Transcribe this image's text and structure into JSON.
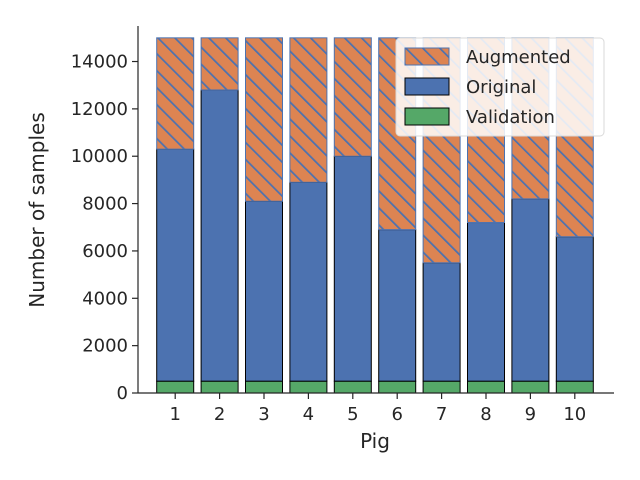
{
  "chart_data": {
    "type": "bar",
    "stacked": true,
    "xlabel": "Pig",
    "ylabel": "Number of samples",
    "categories": [
      "1",
      "2",
      "3",
      "4",
      "5",
      "6",
      "7",
      "8",
      "9",
      "10"
    ],
    "ylim": [
      0,
      15500
    ],
    "yticks": [
      0,
      2000,
      4000,
      6000,
      8000,
      10000,
      12000,
      14000
    ],
    "series": [
      {
        "name": "Validation",
        "color": "#55a868",
        "pattern": "solid",
        "values": [
          500,
          500,
          500,
          500,
          500,
          500,
          500,
          500,
          500,
          500
        ]
      },
      {
        "name": "Original",
        "color": "#4c72b0",
        "pattern": "solid",
        "values": [
          9800,
          12300,
          7600,
          8400,
          9500,
          6400,
          5000,
          6700,
          7700,
          6100
        ]
      },
      {
        "name": "Augmented",
        "color": "#dd8452",
        "pattern": "hatched",
        "hatch_color": "#4c72b0",
        "values": [
          4700,
          2200,
          6900,
          6100,
          5000,
          8100,
          9500,
          7800,
          6800,
          8400
        ]
      }
    ],
    "legend": {
      "position": "top-right",
      "order": [
        "Augmented",
        "Original",
        "Validation"
      ]
    },
    "grid": false
  }
}
